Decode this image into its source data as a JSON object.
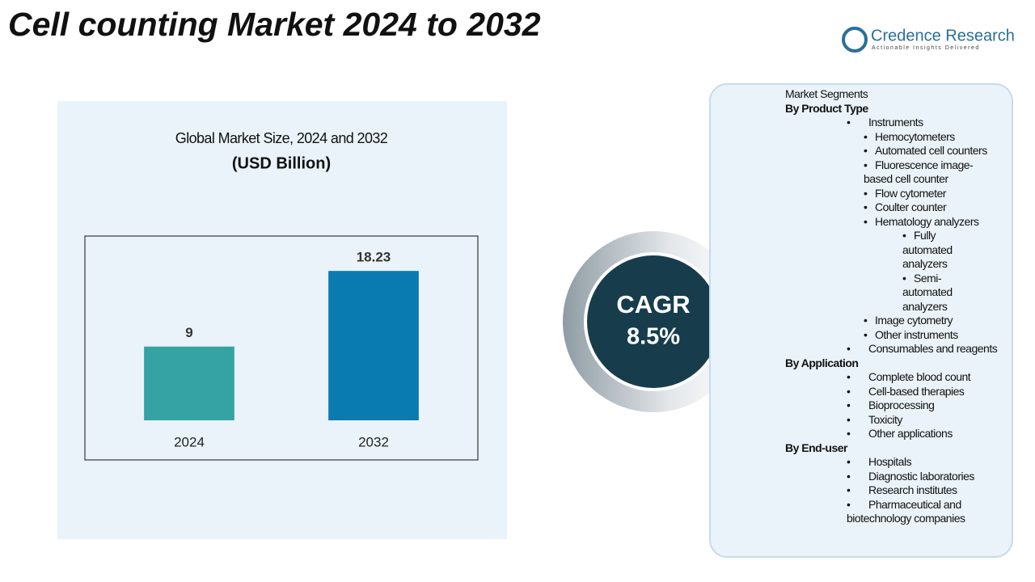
{
  "header": {
    "title": "Cell counting Market 2024 to 2032",
    "logo": "Credence Research",
    "tagline": "Actionable Insights Delivered"
  },
  "chart_data": {
    "type": "bar",
    "title": "Global Market Size, 2024 and 2032",
    "subtitle": "(USD Billion)",
    "categories": [
      "2024",
      "2032"
    ],
    "values": [
      9,
      18.23
    ],
    "colors": [
      "#35a3a3",
      "#0a7bb0"
    ],
    "ylim": [
      0,
      21.5
    ]
  },
  "cagr": {
    "label": "CAGR",
    "value": "8.5%"
  },
  "segments": {
    "heading": "Market Segments",
    "groups": [
      {
        "name": "By Product Type",
        "items": [
          {
            "text": "Instruments",
            "items": [
              {
                "text": "Hemocytometers"
              },
              {
                "text": "Automated cell counters"
              },
              {
                "text": "Fluorescence image-based cell counter"
              },
              {
                "text": "Flow cytometer"
              },
              {
                "text": "Coulter counter"
              },
              {
                "text": "Hematology analyzers",
                "items": [
                  {
                    "text": "Fully automated analyzers"
                  },
                  {
                    "text": "Semi-automated analyzers"
                  }
                ]
              },
              {
                "text": "Image cytometry"
              },
              {
                "text": "Other instruments"
              }
            ]
          },
          {
            "text": "Consumables and reagents"
          }
        ]
      },
      {
        "name": "By Application",
        "items": [
          {
            "text": "Complete blood count"
          },
          {
            "text": "Cell-based therapies"
          },
          {
            "text": "Bioprocessing"
          },
          {
            "text": "Toxicity"
          },
          {
            "text": "Other applications"
          }
        ]
      },
      {
        "name": "By End-user",
        "items": [
          {
            "text": "Hospitals"
          },
          {
            "text": "Diagnostic laboratories"
          },
          {
            "text": "Research institutes"
          },
          {
            "text": "Pharmaceutical and biotechnology companies"
          }
        ]
      }
    ]
  }
}
